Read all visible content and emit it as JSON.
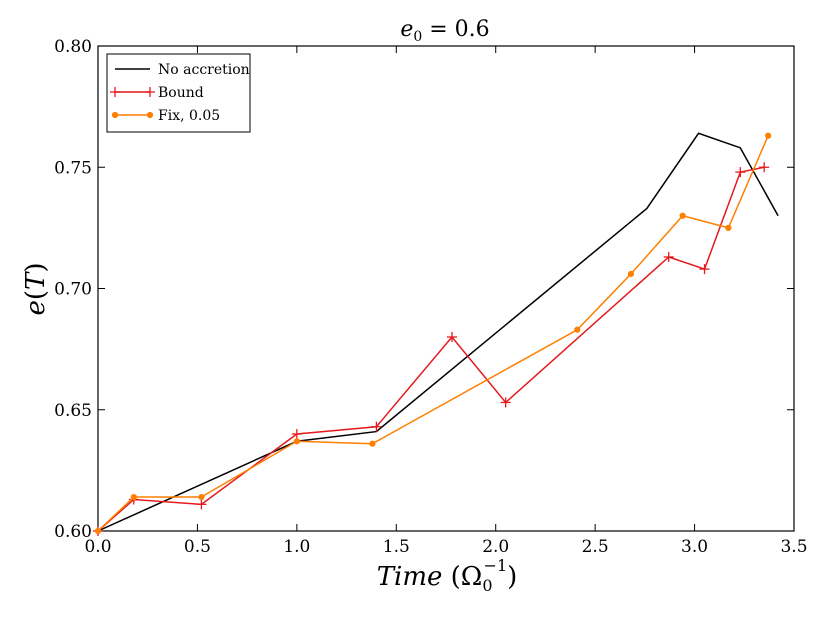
{
  "chart_data": {
    "type": "line",
    "title": "e0 = 0.6",
    "title_parts": {
      "base": "e",
      "sub": "0",
      "rest": " = 0.6"
    },
    "xlabel": "Time (Ω0−1)",
    "xlabel_parts": {
      "italic": "Time",
      "open": " (Ω",
      "sub": "0",
      "sup": "−1",
      "close": ")"
    },
    "ylabel": "e(T)",
    "ylabel_parts": {
      "italic_e": "e",
      "open": "(",
      "italic_T": "T",
      "close": ")"
    },
    "xlim": [
      0.0,
      3.5
    ],
    "ylim": [
      0.6,
      0.8
    ],
    "xticks": [
      "0.0",
      "0.5",
      "1.0",
      "1.5",
      "2.0",
      "2.5",
      "3.0",
      "3.5"
    ],
    "yticks": [
      "0.60",
      "0.65",
      "0.70",
      "0.75",
      "0.80"
    ],
    "grid": false,
    "legend_position": "top-left",
    "series": [
      {
        "name": "No accretion",
        "color": "#000000",
        "marker": "none",
        "x": [
          0.0,
          1.0,
          1.4,
          2.76,
          3.02,
          3.23,
          3.42
        ],
        "y": [
          0.6,
          0.637,
          0.641,
          0.733,
          0.764,
          0.758,
          0.73
        ]
      },
      {
        "name": "Bound",
        "color": "#e41a1c",
        "marker": "plus",
        "x": [
          0.0,
          0.18,
          0.52,
          1.0,
          1.4,
          1.78,
          2.05,
          2.87,
          3.05,
          3.23,
          3.35
        ],
        "y": [
          0.6,
          0.613,
          0.611,
          0.64,
          0.643,
          0.68,
          0.653,
          0.713,
          0.708,
          0.748,
          0.75
        ]
      },
      {
        "name": "Fix, 0.05",
        "color": "#ff7f00",
        "marker": "dot",
        "x": [
          0.0,
          0.18,
          0.52,
          1.0,
          1.38,
          2.41,
          2.68,
          2.94,
          3.17,
          3.37
        ],
        "y": [
          0.6,
          0.614,
          0.614,
          0.637,
          0.636,
          0.683,
          0.706,
          0.73,
          0.725,
          0.763
        ]
      }
    ]
  }
}
